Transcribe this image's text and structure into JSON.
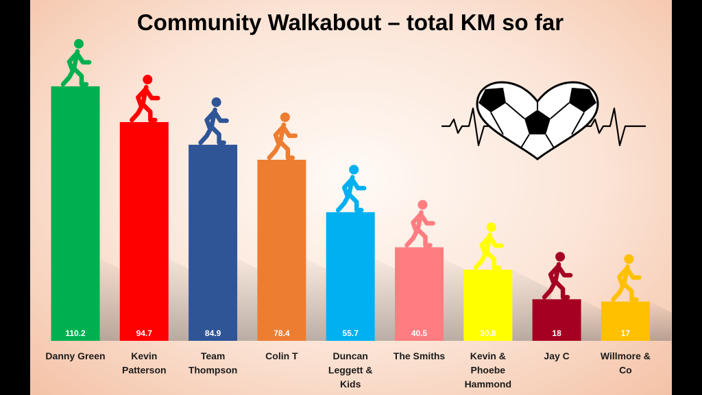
{
  "chart_data": {
    "type": "bar",
    "title": "Community Walkabout – total KM so far",
    "categories": [
      [
        "Danny Green"
      ],
      [
        "Kevin",
        "Patterson"
      ],
      [
        "Team",
        "Thompson"
      ],
      [
        "Colin T"
      ],
      [
        "Duncan",
        "Leggett &",
        "Kids"
      ],
      [
        "The Smiths"
      ],
      [
        "Kevin &",
        "Phoebe",
        "Hammond"
      ],
      [
        "Jay C"
      ],
      [
        "Willmore &",
        "Co"
      ]
    ],
    "values": [
      110.2,
      94.7,
      84.9,
      78.4,
      55.7,
      40.5,
      30.8,
      18,
      17
    ],
    "value_labels": [
      "110.2",
      "94.7",
      "84.9",
      "78.4",
      "55.7",
      "40.5",
      "30.8",
      "18",
      "17"
    ],
    "colors": [
      "#00b050",
      "#ff0000",
      "#2f5597",
      "#ed7d31",
      "#00b0f0",
      "#ff7c80",
      "#ffff00",
      "#a50021",
      "#ffc000"
    ],
    "figure_colors": [
      "#00b050",
      "#ff0000",
      "#2f5597",
      "#ed7d31",
      "#00b0f0",
      "#ff7c80",
      "#ffff00",
      "#a50021",
      "#ffc000"
    ],
    "ylim": [
      0,
      125
    ],
    "grid": false,
    "legend": "none",
    "xlabel": "",
    "ylabel": ""
  },
  "decorations": {
    "bar_figure_icon": "walking-person-icon",
    "emblem_icon": "heartbeat-football-heart-icon"
  }
}
